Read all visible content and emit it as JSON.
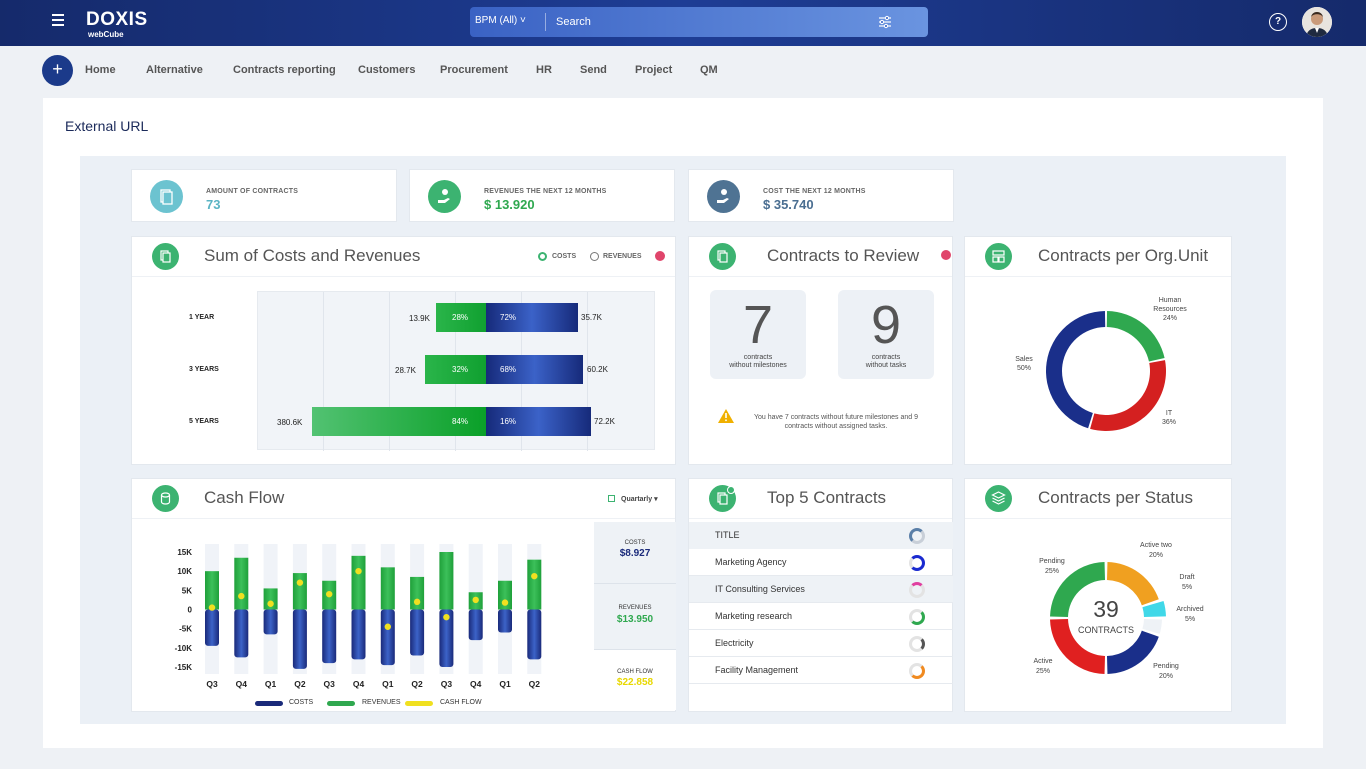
{
  "topbar": {
    "brand": "DOXIS",
    "brand_sub": "webCube",
    "bpm": "BPM (All) ˅",
    "search_placeholder": "Search",
    "help": "?"
  },
  "nav": {
    "plus": "+",
    "items": [
      "Home",
      "Alternative",
      "Contracts reporting",
      "Customers",
      "Procurement",
      "HR",
      "Send",
      "Project",
      "QM"
    ]
  },
  "page": {
    "title": "External URL"
  },
  "kpis": [
    {
      "label": "AMOUNT OF CONTRACTS",
      "value": "73",
      "color": "#5bb4c4",
      "icon": "contracts-icon"
    },
    {
      "label": "REVENUES THE NEXT 12 MONTHS",
      "value": "$ 13.920",
      "color": "#2fa84f",
      "icon": "hand-coin-icon"
    },
    {
      "label": "COST THE NEXT 12 MONTHS",
      "value": "$ 35.740",
      "color": "#4a6e91",
      "icon": "hand-coin-icon"
    }
  ],
  "costs_revenues": {
    "title": "Sum of Costs and Revenues",
    "legend_costs": "COSTS",
    "legend_revenues": "REVENUES",
    "rows": [
      {
        "label": "1 YEAR",
        "rev": "13.9K",
        "rev_pct": "28%",
        "cost_pct": "72%",
        "cost": "35.7K"
      },
      {
        "label": "3 YEARS",
        "rev": "28.7K",
        "rev_pct": "32%",
        "cost_pct": "68%",
        "cost": "60.2K"
      },
      {
        "label": "5 YEARS",
        "rev": "380.6K",
        "rev_pct": "84%",
        "cost_pct": "16%",
        "cost": "72.2K"
      }
    ]
  },
  "review": {
    "title": "Contracts to Review",
    "a_num": "7",
    "a_sub1": "contracts",
    "a_sub2": "without milestones",
    "b_num": "9",
    "b_sub1": "contracts",
    "b_sub2": "without tasks",
    "warn": "You have 7 contracts without future milestones and 9 contracts without assigned tasks.",
    "colors": {
      "warn": "#f0b000"
    }
  },
  "orgunit": {
    "title": "Contracts per Org.Unit",
    "labels": [
      {
        "name": "Human Resources",
        "pct": "24%"
      },
      {
        "name": "Sales",
        "pct": "50%"
      },
      {
        "name": "IT",
        "pct": "36%"
      }
    ]
  },
  "cashflow": {
    "title": "Cash Flow",
    "period": "Quartarly ▾",
    "yticks": [
      "15K",
      "10K",
      "5K",
      "0",
      "-5K",
      "-10K",
      "-15K"
    ],
    "xticks": [
      "Q3",
      "Q4",
      "Q1",
      "Q2",
      "Q3",
      "Q4",
      "Q1",
      "Q2",
      "Q3",
      "Q4",
      "Q1",
      "Q2"
    ],
    "legend": [
      "COSTS",
      "REVENUES",
      "CASH FLOW"
    ],
    "side": [
      {
        "label": "COSTS",
        "value": "$8.927",
        "color": "#1a2a7a"
      },
      {
        "label": "REVENUES",
        "value": "$13.950",
        "color": "#2fa84f"
      },
      {
        "label": "CASH FLOW",
        "value": "$22.858",
        "color": "#e8d800"
      }
    ]
  },
  "top5": {
    "title": "Top 5 Contracts",
    "header": "TITLE",
    "rows": [
      "Marketing Agency",
      "IT Consulting Services",
      "Marketing research",
      "Electricity",
      "Facility Management"
    ]
  },
  "status": {
    "title": "Contracts per Status",
    "center_num": "39",
    "center_label": "CONTRACTS",
    "labels": [
      {
        "name": "Pending",
        "pct": "25%"
      },
      {
        "name": "Active two",
        "pct": "20%"
      },
      {
        "name": "Draft",
        "pct": "5%"
      },
      {
        "name": "Archived",
        "pct": "5%"
      },
      {
        "name": "Pending",
        "pct": "20%"
      },
      {
        "name": "Active",
        "pct": "25%"
      }
    ]
  },
  "chart_data": [
    {
      "type": "bar",
      "title": "Sum of Costs and Revenues",
      "categories": [
        "1 YEAR",
        "3 YEARS",
        "5 YEARS"
      ],
      "series": [
        {
          "name": "REVENUES",
          "values": [
            13900,
            28700,
            380600
          ]
        },
        {
          "name": "COSTS",
          "values": [
            35700,
            60200,
            72200
          ]
        }
      ]
    },
    {
      "type": "bar",
      "title": "Cash Flow",
      "categories": [
        "Q3",
        "Q4",
        "Q1",
        "Q2",
        "Q3",
        "Q4",
        "Q1",
        "Q2",
        "Q3",
        "Q4",
        "Q1",
        "Q2"
      ],
      "ylim": [
        -15000,
        15000
      ],
      "series": [
        {
          "name": "REVENUES",
          "values": [
            10000,
            13500,
            5500,
            9500,
            7500,
            14000,
            11000,
            8500,
            15000,
            4500,
            7500,
            13000
          ]
        },
        {
          "name": "COSTS",
          "values": [
            -9500,
            -12500,
            -6500,
            -15500,
            -14000,
            -13000,
            -14500,
            -12000,
            -15000,
            -8000,
            -6000,
            -13000
          ]
        },
        {
          "name": "CASH FLOW",
          "values": [
            500,
            3500,
            1500,
            7000,
            4000,
            10000,
            -4500,
            2000,
            -2000,
            2500,
            1800,
            8700
          ]
        }
      ]
    },
    {
      "type": "pie",
      "title": "Contracts per Org.Unit",
      "categories": [
        "Human Resources",
        "IT",
        "Sales"
      ],
      "values": [
        24,
        36,
        50
      ]
    },
    {
      "type": "pie",
      "title": "Contracts per Status",
      "categories": [
        "Active two",
        "Draft",
        "Archived",
        "Pending",
        "Active",
        "Pending"
      ],
      "values": [
        20,
        5,
        5,
        20,
        25,
        25
      ]
    }
  ]
}
